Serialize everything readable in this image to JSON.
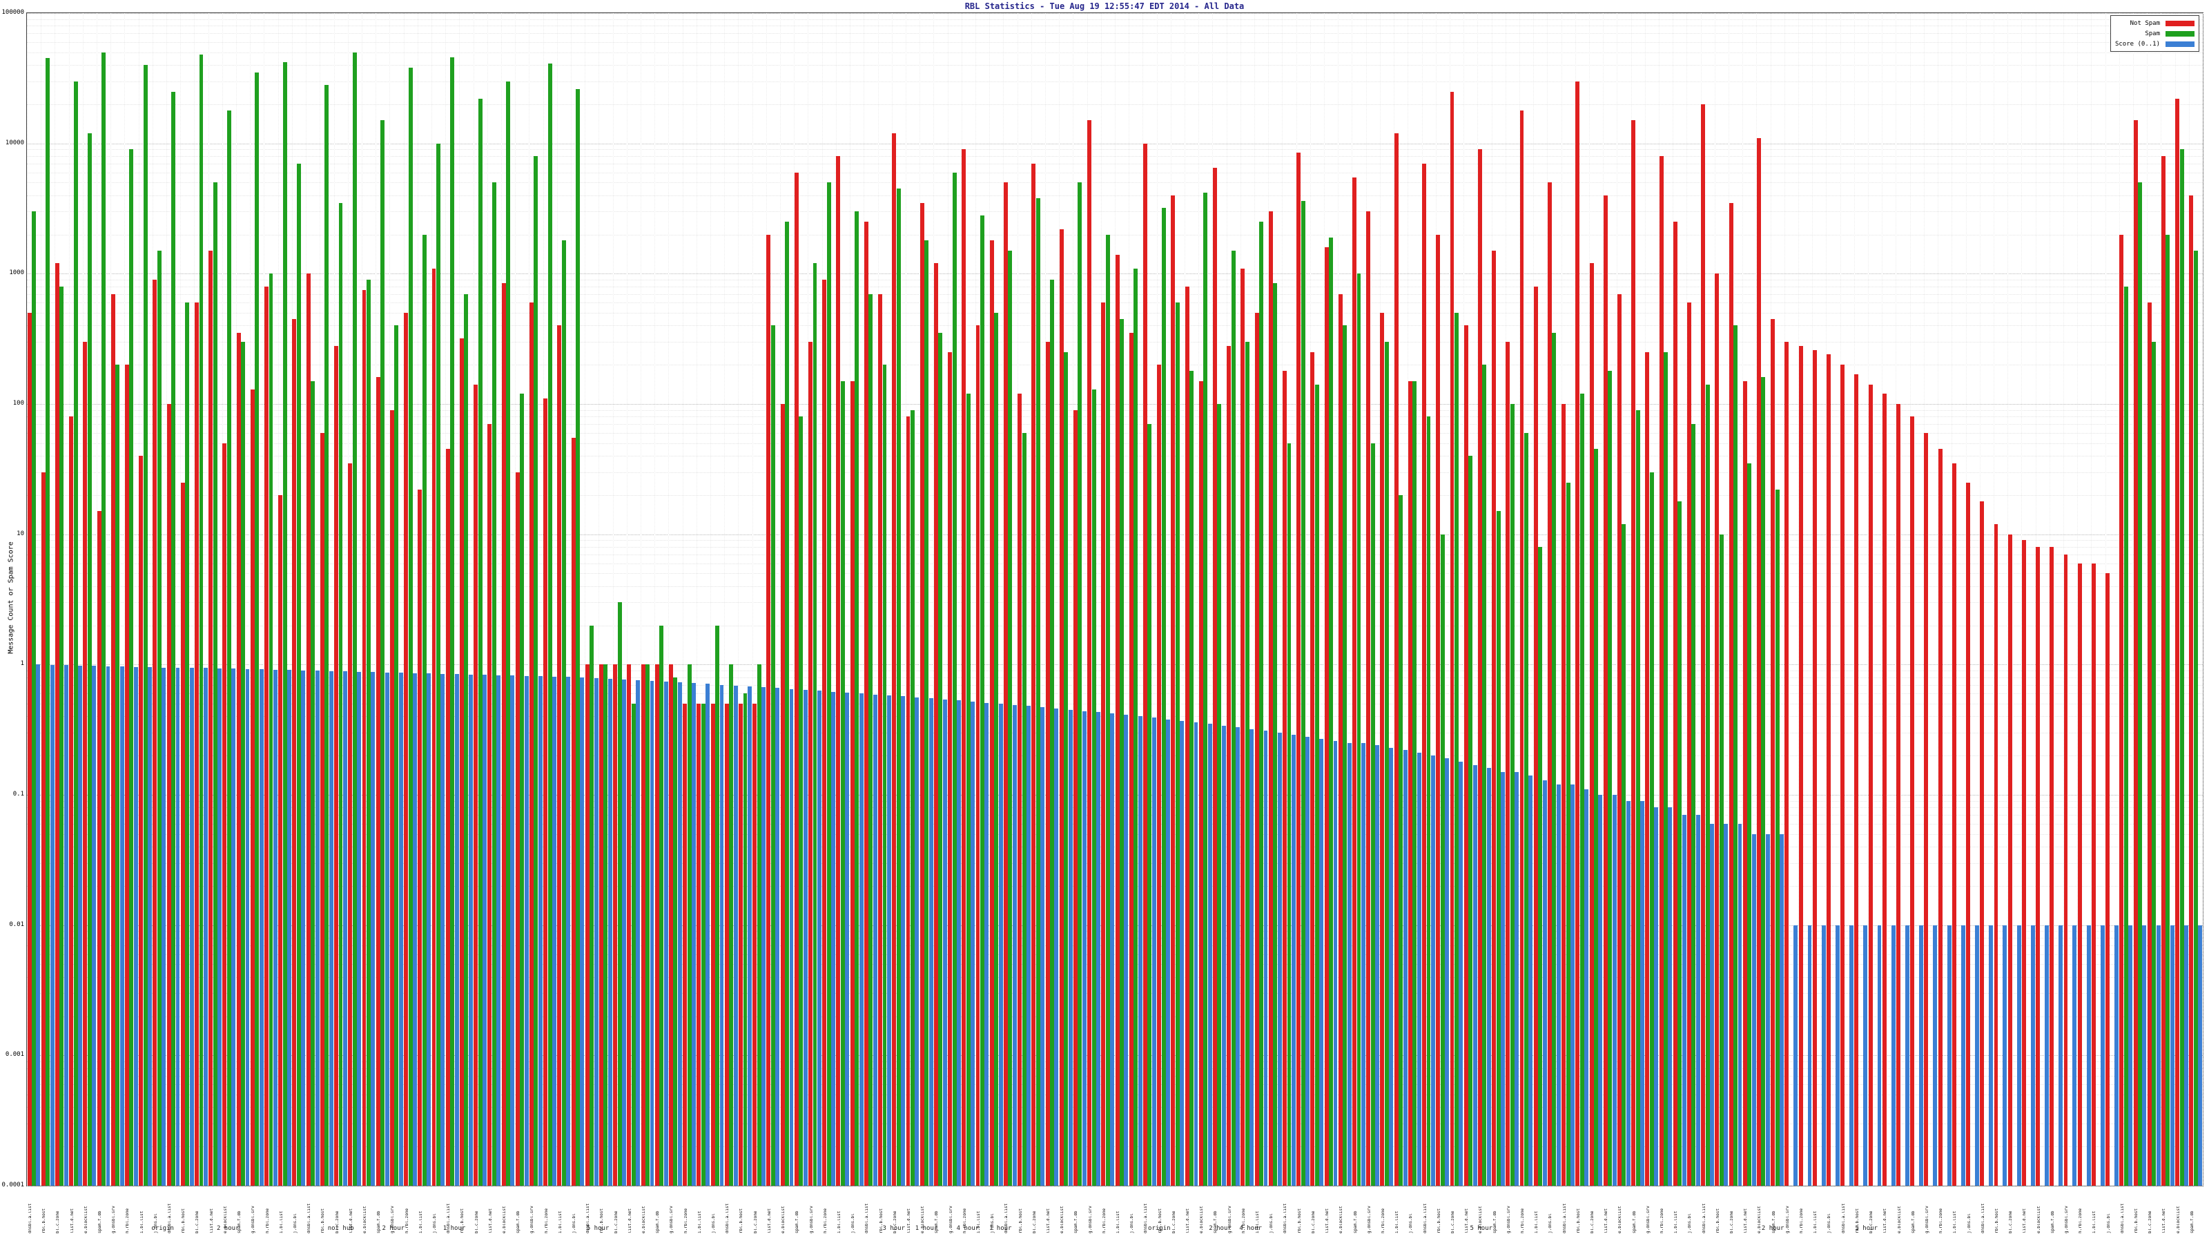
{
  "title": "RBL Statistics - Tue Aug 19 12:55:47 EDT 2014 - All Data",
  "title_color": "#26268c",
  "background": "#ffffff",
  "y_axis": {
    "label": "Message Count or Spam Score",
    "scale": "log",
    "min": 0.0001,
    "max": 100000,
    "ticks": [
      "100000",
      "10000",
      "1000",
      "100",
      "10",
      "1",
      "0.1",
      "0.01",
      "0.001",
      "0.0001"
    ]
  },
  "x_axis": {
    "note": "several hundred rotated RBL host/test labels along the x axis, illegible at source resolution; texture reproduced with placeholder strings",
    "label_texture_samples": [
      "dnsbl.a.list",
      "rbl.b.host",
      "bl.c.zone",
      "list.d.net",
      "e.blocklist",
      "spam.f.db",
      "g.dnsbl.srv",
      "h.rbl.zone",
      "i.bl.list",
      "j.dns.bl"
    ],
    "sublabels": [
      {
        "label": "origin",
        "pos": 0.062
      },
      {
        "label": "2 hour",
        "pos": 0.092
      },
      {
        "label": "not hub",
        "pos": 0.143
      },
      {
        "label": "2 hour",
        "pos": 0.168
      },
      {
        "label": "1 hour",
        "pos": 0.196
      },
      {
        "label": "5 hour",
        "pos": 0.262
      },
      {
        "label": "3 hour",
        "pos": 0.398
      },
      {
        "label": "1 hour",
        "pos": 0.413
      },
      {
        "label": "4 hour",
        "pos": 0.432
      },
      {
        "label": "1 hour",
        "pos": 0.447
      },
      {
        "label": "origin",
        "pos": 0.52
      },
      {
        "label": "2 hour",
        "pos": 0.548
      },
      {
        "label": "4 hour",
        "pos": 0.562
      },
      {
        "label": "5 hour",
        "pos": 0.668
      },
      {
        "label": "2 hour",
        "pos": 0.802
      },
      {
        "label": "5 hour",
        "pos": 0.845
      }
    ]
  },
  "legend": [
    {
      "label": "Not Spam",
      "color": "#e02020"
    },
    {
      "label": "Spam",
      "color": "#1fa01f"
    },
    {
      "label": "Score (0..1)",
      "color": "#3b7fd4"
    }
  ],
  "chart_data": {
    "type": "bar",
    "title": "RBL Statistics - Tue Aug 19 12:55:47 EDT 2014 - All Data",
    "xlabel": "",
    "ylabel": "Message Count or Spam Score",
    "y_scale": "log",
    "ylim": [
      0.0001,
      100000
    ],
    "grid": true,
    "legend_position": "top-right",
    "values_note": "individual bars illegible at source resolution; values below are per-bar estimates reconstructing the visible envelope: green(spam)-dominated spikes on the left, mixed red/green spikes mid-chart, red(not-spam)-dominated spikes then a descending red staircase on the right, a tall mixed cluster at far right, and a blue score series descending smoothly from 1 to 0.01",
    "series": [
      {
        "name": "Not Spam",
        "color": "#e02020",
        "values": [
          500,
          30,
          1200,
          80,
          300,
          15,
          700,
          200,
          40,
          900,
          100,
          25,
          600,
          1500,
          50,
          350,
          130,
          800,
          20,
          450,
          1000,
          60,
          280,
          35,
          750,
          160,
          90,
          500,
          22,
          1100,
          45,
          320,
          140,
          70,
          850,
          30,
          600,
          110,
          400,
          55,
          1,
          1,
          1,
          1,
          1,
          1,
          1,
          0.5,
          0.5,
          0.5,
          0.5,
          0.5,
          0.5,
          2000,
          100,
          6000,
          300,
          900,
          8000,
          150,
          2500,
          700,
          12000,
          80,
          3500,
          1200,
          250,
          9000,
          400,
          1800,
          5000,
          120,
          7000,
          300,
          2200,
          90,
          15000,
          600,
          1400,
          350,
          10000,
          200,
          4000,
          800,
          150,
          6500,
          280,
          1100,
          500,
          3000,
          180,
          8500,
          250,
          1600,
          700,
          5500,
          3000,
          500,
          12000,
          150,
          7000,
          2000,
          25000,
          400,
          9000,
          1500,
          300,
          18000,
          800,
          5000,
          100,
          30000,
          1200,
          4000,
          700,
          15000,
          250,
          8000,
          2500,
          600,
          20000,
          1000,
          3500,
          150,
          11000,
          450,
          300,
          280,
          260,
          240,
          200,
          170,
          140,
          120,
          100,
          80,
          60,
          45,
          35,
          25,
          18,
          12,
          10,
          9,
          8,
          8,
          7,
          6,
          6,
          5,
          2000,
          15000,
          600,
          8000,
          22000,
          4000
        ]
      },
      {
        "name": "Spam",
        "color": "#1fa01f",
        "values": [
          3000,
          45000,
          800,
          30000,
          12000,
          50000,
          200,
          9000,
          40000,
          1500,
          25000,
          600,
          48000,
          5000,
          18000,
          300,
          35000,
          1000,
          42000,
          7000,
          150,
          28000,
          3500,
          50000,
          900,
          15000,
          400,
          38000,
          2000,
          10000,
          46000,
          700,
          22000,
          5000,
          30000,
          120,
          8000,
          41000,
          1800,
          26000,
          2,
          1,
          3,
          0.5,
          1,
          2,
          0.8,
          1,
          0.5,
          2,
          1,
          0.6,
          1,
          400,
          2500,
          80,
          1200,
          5000,
          150,
          3000,
          700,
          200,
          4500,
          90,
          1800,
          350,
          6000,
          120,
          2800,
          500,
          1500,
          60,
          3800,
          900,
          250,
          5000,
          130,
          2000,
          450,
          1100,
          70,
          3200,
          600,
          180,
          4200,
          100,
          1500,
          300,
          2500,
          850,
          50,
          3600,
          140,
          1900,
          400,
          1000,
          50,
          300,
          20,
          150,
          80,
          10,
          500,
          40,
          200,
          15,
          100,
          60,
          8,
          350,
          25,
          120,
          45,
          180,
          12,
          90,
          30,
          250,
          18,
          70,
          140,
          10,
          400,
          35,
          160,
          22,
          0,
          0,
          0,
          0,
          0,
          0,
          0,
          0,
          0,
          0,
          0,
          0,
          0,
          0,
          0,
          0,
          0,
          0,
          0,
          0,
          0,
          0,
          0,
          0,
          800,
          5000,
          300,
          2000,
          9000,
          1500
        ]
      },
      {
        "name": "Score (0..1)",
        "color": "#3b7fd4",
        "values": [
          1,
          0.99,
          0.99,
          0.98,
          0.98,
          0.97,
          0.97,
          0.96,
          0.96,
          0.95,
          0.95,
          0.94,
          0.94,
          0.93,
          0.93,
          0.92,
          0.92,
          0.91,
          0.91,
          0.9,
          0.9,
          0.89,
          0.89,
          0.88,
          0.88,
          0.87,
          0.87,
          0.86,
          0.86,
          0.85,
          0.85,
          0.84,
          0.84,
          0.83,
          0.83,
          0.82,
          0.82,
          0.81,
          0.81,
          0.8,
          0.79,
          0.78,
          0.77,
          0.76,
          0.75,
          0.74,
          0.73,
          0.72,
          0.71,
          0.7,
          0.69,
          0.68,
          0.67,
          0.66,
          0.65,
          0.64,
          0.63,
          0.62,
          0.61,
          0.6,
          0.59,
          0.58,
          0.57,
          0.56,
          0.55,
          0.54,
          0.53,
          0.52,
          0.51,
          0.5,
          0.49,
          0.48,
          0.47,
          0.46,
          0.45,
          0.44,
          0.43,
          0.42,
          0.41,
          0.4,
          0.39,
          0.38,
          0.37,
          0.36,
          0.35,
          0.34,
          0.33,
          0.32,
          0.31,
          0.3,
          0.29,
          0.28,
          0.27,
          0.26,
          0.25,
          0.25,
          0.24,
          0.23,
          0.22,
          0.21,
          0.2,
          0.19,
          0.18,
          0.17,
          0.16,
          0.15,
          0.15,
          0.14,
          0.13,
          0.12,
          0.12,
          0.11,
          0.1,
          0.1,
          0.09,
          0.09,
          0.08,
          0.08,
          0.07,
          0.07,
          0.06,
          0.06,
          0.06,
          0.05,
          0.05,
          0.05,
          0.01,
          0.01,
          0.01,
          0.01,
          0.01,
          0.01,
          0.01,
          0.01,
          0.01,
          0.01,
          0.01,
          0.01,
          0.01,
          0.01,
          0.01,
          0.01,
          0.01,
          0.01,
          0.01,
          0.01,
          0.01,
          0.01,
          0.01,
          0.01,
          0.01,
          0.01,
          0.01,
          0.01,
          0.01,
          0.01
        ]
      }
    ]
  }
}
